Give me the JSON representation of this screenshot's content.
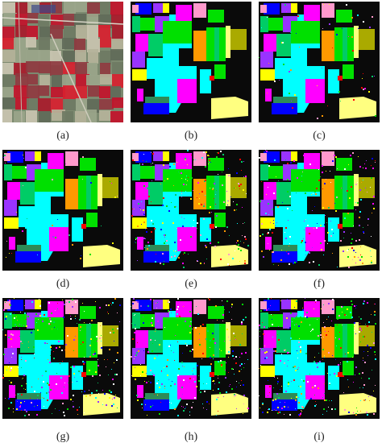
{
  "panels": [
    {
      "caption": "(a)",
      "kind": "satellite-false-color"
    },
    {
      "caption": "(b)",
      "kind": "ground-truth-map"
    },
    {
      "caption": "(c)",
      "kind": "classification-map"
    },
    {
      "caption": "(d)",
      "kind": "classification-map"
    },
    {
      "caption": "(e)",
      "kind": "classification-map"
    },
    {
      "caption": "(f)",
      "kind": "classification-map"
    },
    {
      "caption": "(g)",
      "kind": "classification-map"
    },
    {
      "caption": "(h)",
      "kind": "classification-map"
    },
    {
      "caption": "(i)",
      "kind": "classification-map"
    }
  ],
  "class_colors": [
    "#0a0a0a",
    "#00e000",
    "#ff00ff",
    "#00ffff",
    "#ffff00",
    "#ff9900",
    "#9933ff",
    "#0000ff",
    "#ffff80",
    "#00cc66",
    "#ff99cc",
    "#aaaa00",
    "#2e8b57",
    "#ff0000",
    "#ffffff"
  ]
}
